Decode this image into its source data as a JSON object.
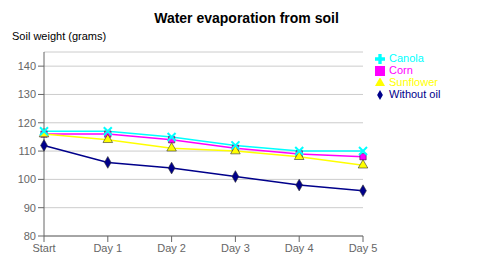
{
  "chart_data": {
    "type": "line",
    "title": "Water evaporation from soil",
    "ylabel": "Soil weight (grams)",
    "categories": [
      "Start",
      "Day 1",
      "Day 2",
      "Day 3",
      "Day 4",
      "Day 5"
    ],
    "series": [
      {
        "name": "Without oil",
        "color": "#00008B",
        "marker": "diamond",
        "values": [
          112,
          106,
          104,
          101,
          98,
          96
        ]
      },
      {
        "name": "Corn",
        "color": "#FF00FF",
        "marker": "square",
        "values": [
          116,
          116,
          114,
          111,
          109,
          108
        ]
      },
      {
        "name": "Sunflower",
        "color": "#FFFF00",
        "marker": "triangle",
        "values": [
          116,
          114,
          111,
          110,
          108,
          105
        ]
      },
      {
        "name": "Canola",
        "color": "#00FFFF",
        "marker": "x",
        "values": [
          117,
          117,
          115,
          112,
          110,
          110
        ]
      }
    ],
    "ylim": [
      80,
      145
    ],
    "yticks": [
      80,
      90,
      100,
      110,
      120,
      130,
      140
    ],
    "grid": true,
    "legend": "right"
  }
}
